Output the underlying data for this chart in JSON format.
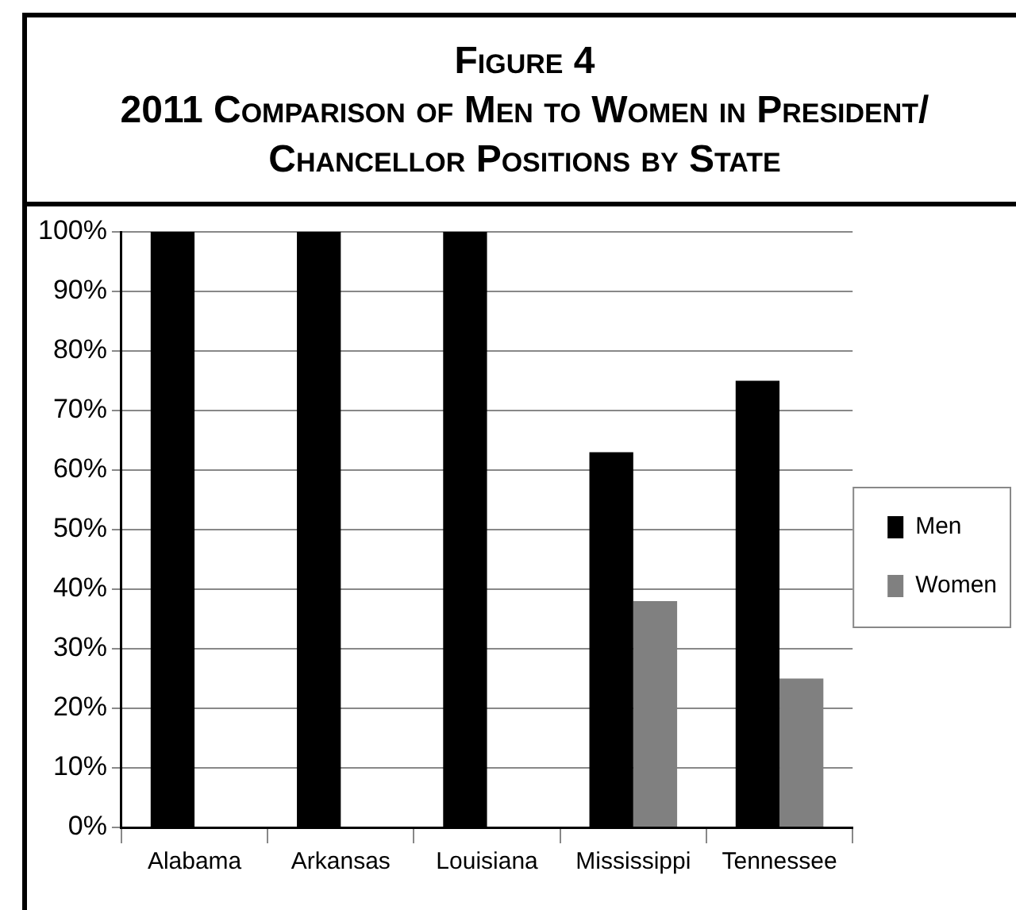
{
  "chart_data": {
    "type": "bar",
    "title": "Figure 4",
    "subtitle": "2011 Comparison of Men to Women in President/ Chancellor Positions by State",
    "categories": [
      "Alabama",
      "Arkansas",
      "Louisiana",
      "Mississippi",
      "Tennessee"
    ],
    "series": [
      {
        "name": "Men",
        "color": "#000000",
        "values": [
          100,
          100,
          100,
          63,
          75
        ]
      },
      {
        "name": "Women",
        "color": "#808080",
        "values": [
          0,
          0,
          0,
          38,
          25
        ]
      }
    ],
    "ylim": [
      0,
      100
    ],
    "yticks": [
      {
        "value": 0,
        "label": "0%"
      },
      {
        "value": 10,
        "label": "10%"
      },
      {
        "value": 20,
        "label": "20%"
      },
      {
        "value": 30,
        "label": "30%"
      },
      {
        "value": 40,
        "label": "40%"
      },
      {
        "value": 50,
        "label": "50%"
      },
      {
        "value": 60,
        "label": "60%"
      },
      {
        "value": 70,
        "label": "70%"
      },
      {
        "value": 80,
        "label": "80%"
      },
      {
        "value": 90,
        "label": "90%"
      },
      {
        "value": 100,
        "label": "100%"
      }
    ],
    "grid": "y",
    "legend": "right"
  }
}
